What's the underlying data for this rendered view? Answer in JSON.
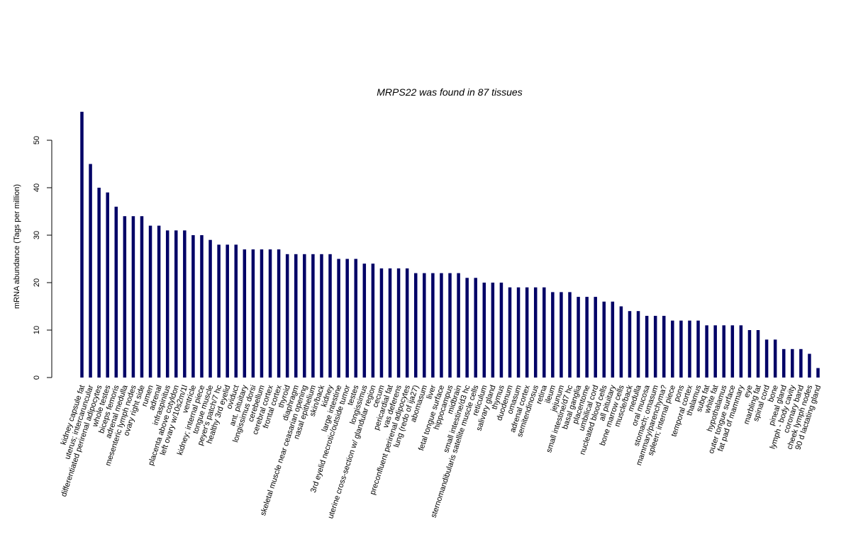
{
  "chart_data": {
    "type": "bar",
    "title": "MRPS22  was found in  87  tissues",
    "xlabel": "",
    "ylabel": "mRNA abundance (Tags per million)",
    "ylim": [
      0,
      56
    ],
    "yticks": [
      0,
      10,
      20,
      30,
      40,
      50
    ],
    "grid": false,
    "bar_color": "#000066",
    "categories": [
      "kidney capsule fat",
      "uterus; intercaruncular",
      "differentiated perirenal adipocytes",
      "whole testes",
      "biceps femoris",
      "adrenal medulla",
      "mesenteric lymph nodes",
      "ovary right side",
      "rumen",
      "adrenal",
      "infraspinitus",
      "placenta above cotyldon",
      "left ovary w/10s2m/1l",
      "ventricle",
      "kidney; internal piece",
      "tongue muscle",
      "peyer's patch/7 hc",
      "healthy 3rd eyelid",
      "oviduct",
      "ant. pituitary",
      "longissimus dorsi",
      "cerebellum",
      "cerebral cortex",
      "frontal cortex",
      "thyroid",
      "diaphragm",
      "skeletal muscle near ceasarian opening",
      "nasal epithelium",
      "skin/back",
      "kidney",
      "large intestine",
      "3rd eyelid necrotic/outside tumor",
      "testes",
      "longissimus",
      "uterine cross-section w/ glandular region",
      "cecum",
      "pericardial fat",
      "vas deferens",
      "preconfluent perirenal adipocytes",
      "lung (redo of ija27)",
      "abomasum",
      "liver",
      "fetal tongue surface",
      "hippocampus",
      "midbrain",
      "small intestine/d3 hc",
      "sternomandibularis satellite muscle cells",
      "reticulum",
      "salivary gland",
      "thymus",
      "duodenum",
      "omasum",
      "adrenal cortex",
      "semitendinosus",
      "retina",
      "ileum",
      "jejunum",
      "small intestine/d7 hc",
      "basal ganglia",
      "placentome",
      "umbilical cord",
      "nucleated blood cells",
      "all pituitary",
      "bone marrow cells",
      "muscle/back",
      "medulla",
      "oral mucosa",
      "stomach; omasum",
      "mammary/parenchyma?",
      "spleen; internal piece",
      "pons",
      "temporal cortex",
      "thalamus",
      "subq fat",
      "white fat",
      "hypothalamus",
      "outer tongue surface",
      "fat pad of mammary",
      "eye",
      "marbling fat",
      "spinal cord",
      "bone",
      "pineal gland",
      "lymph - body cavity",
      "coronary band",
      "cheek lymph nodes",
      "90 d lactating gland"
    ],
    "values": [
      56,
      45,
      40,
      39,
      36,
      34,
      34,
      34,
      32,
      32,
      31,
      31,
      31,
      30,
      30,
      29,
      28,
      28,
      28,
      27,
      27,
      27,
      27,
      27,
      26,
      26,
      26,
      26,
      26,
      26,
      25,
      25,
      25,
      24,
      24,
      23,
      23,
      23,
      23,
      22,
      22,
      22,
      22,
      22,
      22,
      21,
      21,
      20,
      20,
      20,
      19,
      19,
      19,
      19,
      19,
      18,
      18,
      18,
      17,
      17,
      17,
      16,
      16,
      15,
      14,
      14,
      13,
      13,
      13,
      12,
      12,
      12,
      12,
      11,
      11,
      11,
      11,
      11,
      10,
      10,
      8,
      8,
      6,
      6,
      6,
      5,
      2
    ]
  }
}
